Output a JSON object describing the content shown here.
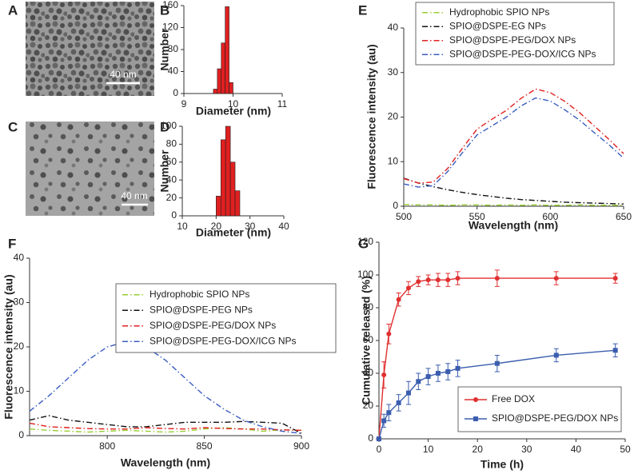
{
  "images": [
    {
      "label": "A",
      "scale_bar": "40 nm"
    },
    {
      "label": "C",
      "scale_bar": "40 nm"
    }
  ],
  "chart_data": [
    {
      "type": "histogram",
      "panel_label": "B",
      "y_label": "Number",
      "x_label": "Diameter (nm)",
      "bins": [
        9.6,
        9.68,
        9.76,
        9.84,
        9.92,
        10.0
      ],
      "counts": [
        8,
        45,
        92,
        158,
        20
      ],
      "color": "#e02020",
      "xlim": [
        9,
        11
      ],
      "xticks": [
        9,
        10,
        11
      ],
      "ylim": [
        0,
        160
      ],
      "yticks": [
        0,
        40,
        80,
        120,
        160
      ]
    },
    {
      "type": "histogram",
      "panel_label": "D",
      "y_label": "Number",
      "x_label": "Diameter (nm)",
      "bins": [
        20,
        21.4,
        22.8,
        24.2,
        25.6,
        27
      ],
      "counts": [
        22,
        85,
        100,
        60,
        28
      ],
      "color": "#e02020",
      "xlim": [
        10,
        40
      ],
      "xticks": [
        10,
        20,
        30,
        40
      ],
      "ylim": [
        0,
        100
      ],
      "yticks": [
        0,
        20,
        40,
        60,
        80,
        100
      ]
    },
    {
      "type": "line",
      "panel_label": "E",
      "y_label": "Fluorescence intensity (au)",
      "x_label": "Wavelength (nm)",
      "dash": "dash-dot",
      "x": [
        500,
        510,
        520,
        530,
        540,
        550,
        560,
        570,
        580,
        590,
        600,
        610,
        620,
        630,
        640,
        650
      ],
      "series": [
        {
          "name": "Hydrophobic SPIO NPs",
          "color": "#9acd32",
          "values": [
            0.4,
            0.3,
            0.3,
            0.2,
            0.3,
            0.3,
            0.2,
            0.3,
            0.2,
            0.3,
            0.2,
            0.2,
            0.3,
            0.2,
            0.2,
            0.2
          ]
        },
        {
          "name": "SPIO@DSPE-EG NPs",
          "color": "#111111",
          "values": [
            6.3,
            5.2,
            4.4,
            3.7,
            3.1,
            2.6,
            2.2,
            1.8,
            1.5,
            1.3,
            1.1,
            0.9,
            0.8,
            0.7,
            0.6,
            0.5
          ]
        },
        {
          "name": "SPIO@DSPE-PEG/DOX NPs",
          "color": "#e02020",
          "values": [
            6.2,
            5.2,
            5.4,
            8.5,
            13,
            17.3,
            19.5,
            21.5,
            24.2,
            26.3,
            25.5,
            23.5,
            21,
            18,
            15,
            11.8
          ]
        },
        {
          "name": "SPIO@DSPE-PEG-DOX/ICG NPs",
          "color": "#3a5dc0",
          "values": [
            5,
            4.3,
            4.6,
            7.8,
            12,
            16,
            18,
            20,
            22.5,
            24.3,
            23.6,
            21.6,
            19.3,
            16.5,
            13.8,
            10.8
          ]
        }
      ],
      "xlim": [
        500,
        650
      ],
      "xticks": [
        500,
        550,
        600,
        650
      ],
      "ylim": [
        0,
        40
      ],
      "yticks": [
        0,
        10,
        20,
        30,
        40
      ]
    },
    {
      "type": "line",
      "panel_label": "F",
      "y_label": "Fluorescence intensity (au)",
      "x_label": "Wavelength (nm)",
      "dash": "dash-dot",
      "x": [
        760,
        770,
        780,
        790,
        800,
        810,
        820,
        830,
        840,
        850,
        860,
        870,
        880,
        890,
        900
      ],
      "series": [
        {
          "name": "Hydrophobic SPIO NPs",
          "color": "#9acd32",
          "values": [
            1.5,
            1.2,
            1.0,
            0.8,
            1.0,
            1.2,
            1.0,
            0.8,
            1.0,
            1.5,
            1.8,
            1.5,
            1.0,
            1.3,
            1.2
          ]
        },
        {
          "name": "SPIO@DSPE-PEG NPs",
          "color": "#111111",
          "values": [
            3.5,
            4.5,
            3.5,
            3,
            2.5,
            2,
            2,
            2.5,
            3,
            3,
            3,
            3.2,
            3,
            2.8,
            0.5
          ]
        },
        {
          "name": "SPIO@DSPE-PEG/DOX NPs",
          "color": "#e02020",
          "values": [
            2.8,
            2,
            1.8,
            1.6,
            1.5,
            1.5,
            1.8,
            1.6,
            1.5,
            1.8,
            1.6,
            1.5,
            1.5,
            1.3,
            1.2
          ]
        },
        {
          "name": "SPIO@DSPE-PEG-DOX/ICG NPs",
          "color": "#3a5dc0",
          "values": [
            5.5,
            9,
            13,
            17,
            20,
            21.2,
            20,
            17,
            13,
            9,
            6,
            3.5,
            2,
            1,
            0.5
          ]
        }
      ],
      "xlim": [
        760,
        900
      ],
      "xticks": [
        800,
        850,
        900
      ],
      "ylim": [
        0,
        40
      ],
      "yticks": [
        0,
        10,
        20,
        30,
        40
      ]
    },
    {
      "type": "line",
      "panel_label": "G",
      "y_label": "Cumulative released (%)",
      "x_label": "Time (h)",
      "x": [
        0,
        1,
        2,
        4,
        6,
        8,
        10,
        12,
        14,
        16,
        24,
        36,
        48
      ],
      "series": [
        {
          "name": "Free DOX",
          "color": "#e03030",
          "marker": "circle",
          "values": [
            0,
            39,
            64,
            85,
            92,
            96,
            97,
            97,
            97,
            98,
            98,
            98,
            98
          ],
          "errors": [
            0,
            8,
            6,
            4,
            4,
            3,
            3,
            4,
            4,
            4,
            5,
            4,
            3
          ]
        },
        {
          "name": "SPIO@DSPE-PEG/DOX NPs",
          "color": "#3a5dae",
          "marker": "square",
          "values": [
            0,
            11,
            16,
            22,
            28,
            35,
            38,
            40,
            41,
            43,
            46,
            51,
            54
          ],
          "errors": [
            0,
            4,
            5,
            5,
            7,
            5,
            5,
            5,
            5,
            5,
            5,
            4,
            4
          ]
        }
      ],
      "xlim": [
        0,
        50
      ],
      "xticks": [
        0,
        10,
        20,
        30,
        40,
        50
      ],
      "ylim": [
        0,
        120
      ],
      "yticks": [
        0,
        20,
        40,
        60,
        80,
        100,
        120
      ]
    }
  ]
}
